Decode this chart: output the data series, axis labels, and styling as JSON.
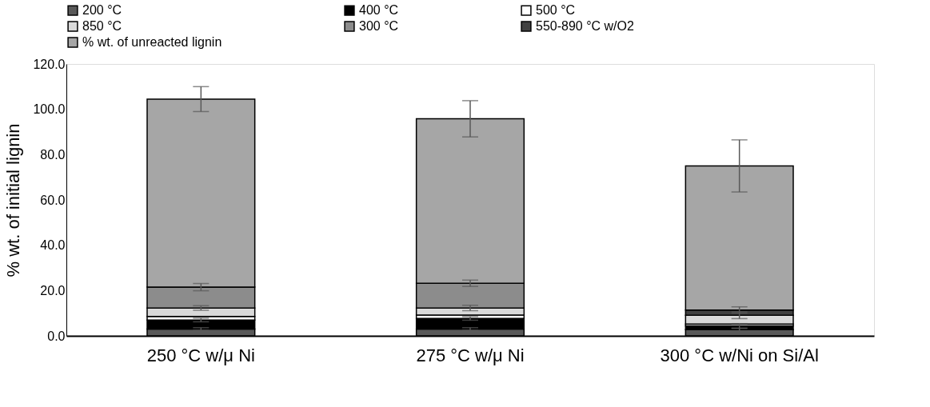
{
  "chart_data": {
    "type": "bar",
    "stacked": true,
    "ylabel": "% wt. of initial lignin",
    "categories": [
      "250 °C w/μ Ni",
      "275 °C w/μ Ni",
      "300 °C w/Ni on Si/Al"
    ],
    "series": [
      {
        "name": "200 °C",
        "color": "#595959",
        "values": [
          3.0,
          3.0,
          2.7
        ],
        "errors": [
          0.6,
          0.6,
          0.6
        ]
      },
      {
        "name": "400 °C",
        "color": "#000000",
        "values": [
          4.0,
          4.7,
          1.7
        ],
        "errors": [
          0.8,
          0.8,
          1.0
        ]
      },
      {
        "name": "500 °C",
        "color": "#ffffff",
        "values": [
          1.6,
          1.5,
          0.8
        ]
      },
      {
        "name": "850 °C",
        "color": "#d9d9d9",
        "values": [
          3.7,
          3.1,
          3.9
        ],
        "errors": [
          1.0,
          1.2,
          1.5
        ]
      },
      {
        "name": "300 °C",
        "color": "#8c8c8c",
        "values": [
          9.2,
          10.9,
          0.0
        ],
        "errors": [
          1.6,
          1.4,
          null
        ]
      },
      {
        "name": "550-890 °C w/O2",
        "color": "#404040",
        "values": [
          0.0,
          0.0,
          2.3
        ],
        "errors": [
          null,
          null,
          1.4
        ]
      },
      {
        "name": "% wt. of unreacted lignin",
        "color": "#a6a6a6",
        "values": [
          83.0,
          72.6,
          63.6
        ],
        "errors": [
          5.5,
          8.0,
          11.5
        ]
      }
    ],
    "ylim": [
      0,
      120
    ],
    "yticks": [
      {
        "value": 0,
        "label": "0.0"
      },
      {
        "value": 20,
        "label": "20.0"
      },
      {
        "value": 40,
        "label": "40.0"
      },
      {
        "value": 60,
        "label": "60.0"
      },
      {
        "value": 80,
        "label": "80.0"
      },
      {
        "value": 100,
        "label": "100.0"
      },
      {
        "value": 120,
        "label": "120.0"
      }
    ],
    "grid": false,
    "legend": "top"
  }
}
